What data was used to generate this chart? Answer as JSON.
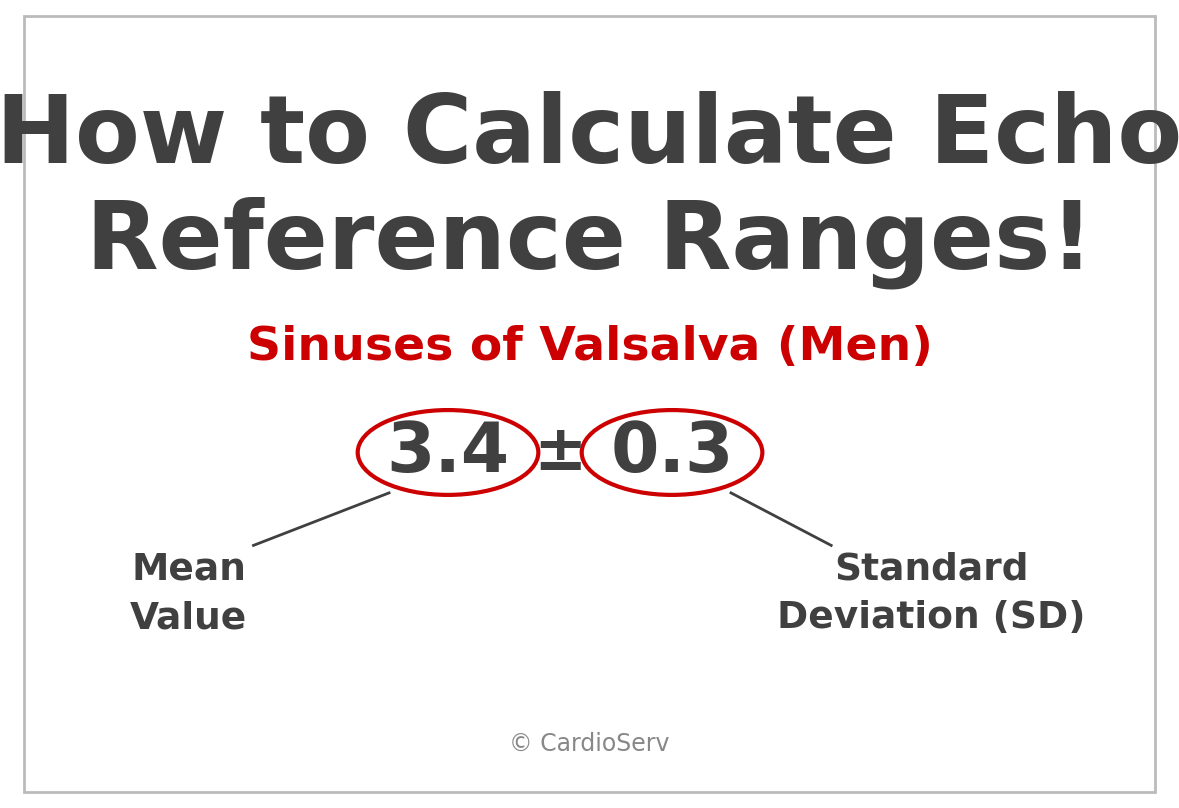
{
  "title_line1": "How to Calculate Echo",
  "title_line2": "Reference Ranges!",
  "subtitle": "Sinuses of Valsalva (Men)",
  "mean_value": "3.4",
  "sd_value": "0.3",
  "plus_minus": "±",
  "mean_label_line1": "Mean",
  "mean_label_line2": "Value",
  "sd_label_line1": "Standard",
  "sd_label_line2": "Deviation (SD)",
  "copyright": "© CardioServ",
  "title_color": "#404040",
  "subtitle_color": "#cc0000",
  "number_color": "#404040",
  "label_color": "#404040",
  "copyright_color": "#888888",
  "ellipse_color": "#cc0000",
  "background_color": "#ffffff",
  "border_color": "#bbbbbb",
  "title_fontsize": 68,
  "subtitle_fontsize": 34,
  "number_fontsize": 50,
  "plusminus_fontsize": 46,
  "label_fontsize": 27,
  "copyright_fontsize": 17
}
